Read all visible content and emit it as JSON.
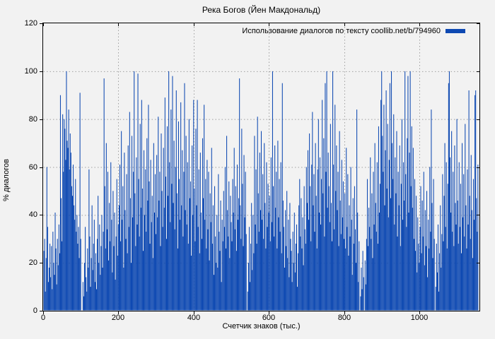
{
  "title": "Река Богов (Йен Макдональд)",
  "legend": {
    "label": "Использование диалогов по тексту coollib.net/b/794960"
  },
  "axes": {
    "x": {
      "label": "Счетчик знаков (тыс.)",
      "ticks": [
        0,
        200,
        400,
        600,
        800,
        1000
      ]
    },
    "y": {
      "label": "% диалогов",
      "ticks": [
        0,
        20,
        40,
        60,
        80,
        100,
        120
      ]
    }
  },
  "colors": {
    "background": "#f2f2f2",
    "bar": "#0e49b2",
    "grid": "#a0a0a0",
    "border": "#000000",
    "text": "#000000"
  },
  "chart_data": {
    "type": "bar",
    "style": "impulses",
    "title": "Река Богов (Йен Макдональд)",
    "xlabel": "Счетчик знаков (тыс.)",
    "ylabel": "% диалогов",
    "xlim": [
      0,
      1160
    ],
    "ylim": [
      0,
      120
    ],
    "grid": true,
    "legend_position": "top-right",
    "series": [
      {
        "name": "Использование диалогов по тексту coollib.net/b/794960",
        "color": "#0e49b2",
        "x_start": 2,
        "x_step": 2,
        "values": [
          25,
          30,
          8,
          22,
          60,
          35,
          12,
          18,
          28,
          14,
          27,
          9,
          33,
          20,
          15,
          41,
          26,
          11,
          30,
          19,
          36,
          24,
          90,
          47,
          29,
          82,
          58,
          80,
          76,
          63,
          100,
          71,
          68,
          84,
          59,
          74,
          66,
          52,
          48,
          61,
          44,
          38,
          55,
          33,
          40,
          28,
          35,
          22,
          91,
          30,
          0,
          0,
          12,
          6,
          20,
          35,
          14,
          8,
          26,
          18,
          59,
          31,
          10,
          22,
          44,
          17,
          28,
          38,
          12,
          24,
          9,
          30,
          48,
          20,
          36,
          15,
          27,
          40,
          18,
          33,
          97,
          52,
          26,
          70,
          34,
          58,
          21,
          45,
          29,
          62,
          38,
          16,
          50,
          27,
          41,
          13,
          31,
          55,
          23,
          36,
          44,
          61,
          29,
          75,
          38,
          52,
          18,
          66,
          42,
          30,
          57,
          24,
          69,
          35,
          83,
          47,
          20,
          73,
          39,
          58,
          100,
          49,
          27,
          64,
          36,
          99,
          55,
          31,
          78,
          43,
          88,
          51,
          25,
          67,
          40,
          59,
          33,
          72,
          46,
          86,
          54,
          28,
          63,
          37,
          48,
          22,
          70,
          41,
          57,
          32,
          65,
          39,
          81,
          46,
          58,
          27,
          74,
          50,
          35,
          68,
          43,
          89,
          56,
          30,
          77,
          48,
          100,
          62,
          37,
          84,
          53,
          98,
          45,
          71,
          34,
          60,
          92,
          49,
          26,
          79,
          55,
          38,
          87,
          44,
          67,
          31,
          58,
          95,
          42,
          73,
          36,
          62,
          28,
          80,
          47,
          54,
          23,
          69,
          40,
          88,
          51,
          29,
          76,
          44,
          88,
          35,
          59,
          24,
          66,
          41,
          30,
          72,
          47,
          86,
          38,
          55,
          26,
          63,
          34,
          58,
          21,
          49,
          37,
          68,
          28,
          44,
          15,
          52,
          31,
          20,
          40,
          18,
          57,
          33,
          25,
          46,
          12,
          38,
          29,
          50,
          35,
          60,
          26,
          73,
          42,
          31,
          54,
          22,
          48,
          37,
          29,
          55,
          41,
          68,
          34,
          52,
          25,
          61,
          38,
          47,
          97,
          44,
          30,
          76,
          53,
          27,
          65,
          39,
          58,
          32,
          0,
          8,
          20,
          35,
          12,
          28,
          45,
          17,
          40,
          24,
          73,
          36,
          59,
          28,
          81,
          49,
          33,
          66,
          42,
          75,
          38,
          57,
          30,
          70,
          45,
          26,
          62,
          35,
          53,
          41,
          48,
          29,
          64,
          37,
          100,
          52,
          31,
          69,
          43,
          58,
          26,
          71,
          39,
          55,
          33,
          62,
          24,
          95,
          46,
          35,
          18,
          42,
          27,
          50,
          22,
          38,
          14,
          45,
          30,
          25,
          12,
          33,
          20,
          41,
          16,
          28,
          36,
          10,
          24,
          44,
          55,
          31,
          47,
          26,
          39,
          19,
          52,
          34,
          28,
          60,
          45,
          67,
          38,
          74,
          52,
          29,
          61,
          83,
          44,
          57,
          33,
          70,
          48,
          26,
          59,
          80,
          41,
          64,
          36,
          55,
          88,
          49,
          72,
          31,
          95,
          58,
          100,
          43,
          66,
          52,
          37,
          78,
          45,
          29,
          100,
          61,
          34,
          86,
          50,
          69,
          42,
          58,
          27,
          75,
          46,
          32,
          63,
          39,
          54,
          30,
          49,
          26,
          68,
          35,
          57,
          23,
          44,
          31,
          60,
          38,
          15,
          47,
          28,
          52,
          34,
          20,
          84,
          41,
          12,
          29,
          0,
          6,
          18,
          9,
          25,
          14,
          0,
          21,
          11,
          30,
          55,
          27,
          43,
          35,
          64,
          30,
          49,
          22,
          58,
          36,
          70,
          45,
          33,
          62,
          28,
          77,
          41,
          53,
          88,
          100,
          73,
          58,
          86,
          44,
          67,
          92,
          51,
          78,
          39,
          63,
          95,
          47,
          100,
          70,
          55,
          82,
          36,
          64,
          49,
          75,
          31,
          58,
          44,
          69,
          27,
          53,
          80,
          38,
          62,
          46,
          100,
          57,
          35,
          72,
          98,
          41,
          66,
          100,
          52,
          77,
          43,
          68,
          30,
          55,
          25,
          48,
          16,
          39,
          28,
          20,
          35,
          52,
          24,
          46,
          31,
          58,
          19,
          42,
          27,
          50,
          14,
          38,
          26,
          60,
          33,
          84,
          45,
          22,
          55,
          30,
          0,
          10,
          28,
          16,
          36,
          8,
          24,
          44,
          18,
          32,
          57,
          29,
          48,
          70,
          35,
          62,
          26,
          53,
          95,
          100,
          64,
          41,
          75,
          33,
          58,
          27,
          69,
          45,
          36,
          80,
          46,
          28,
          62,
          35,
          53,
          24,
          70,
          39,
          57,
          31,
          78,
          44,
          26,
          59,
          36,
          92,
          48,
          30,
          65,
          42,
          22,
          55,
          38,
          90,
          92,
          47,
          33,
          61
        ]
      }
    ]
  }
}
